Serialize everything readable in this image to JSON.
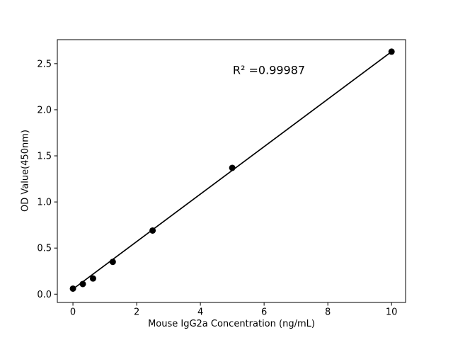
{
  "chart_data": {
    "type": "scatter",
    "title": "",
    "xlabel": "Mouse IgG2a Concentration (ng/mL)",
    "ylabel": "OD Value(450nm)",
    "annotation": "R² =0.99987",
    "x": [
      0,
      0.31,
      0.63,
      1.25,
      2.5,
      5,
      10
    ],
    "y": [
      0.06,
      0.11,
      0.17,
      0.35,
      0.69,
      1.37,
      2.63
    ],
    "fit_line": {
      "x": [
        0,
        10
      ],
      "y": [
        0.055,
        2.63
      ]
    },
    "xlim": [
      -0.49,
      10.44
    ],
    "ylim": [
      -0.09,
      2.76
    ],
    "xticks": [
      "0",
      "2",
      "4",
      "6",
      "8",
      "10"
    ],
    "yticks": [
      "0.0",
      "0.5",
      "1.0",
      "1.5",
      "2.0",
      "2.5"
    ],
    "grid": false,
    "legend": null,
    "marker_color": "#000000",
    "line_color": "#000000",
    "axis_color": "#000000",
    "text_color": "#000000",
    "background": "#ffffff"
  }
}
